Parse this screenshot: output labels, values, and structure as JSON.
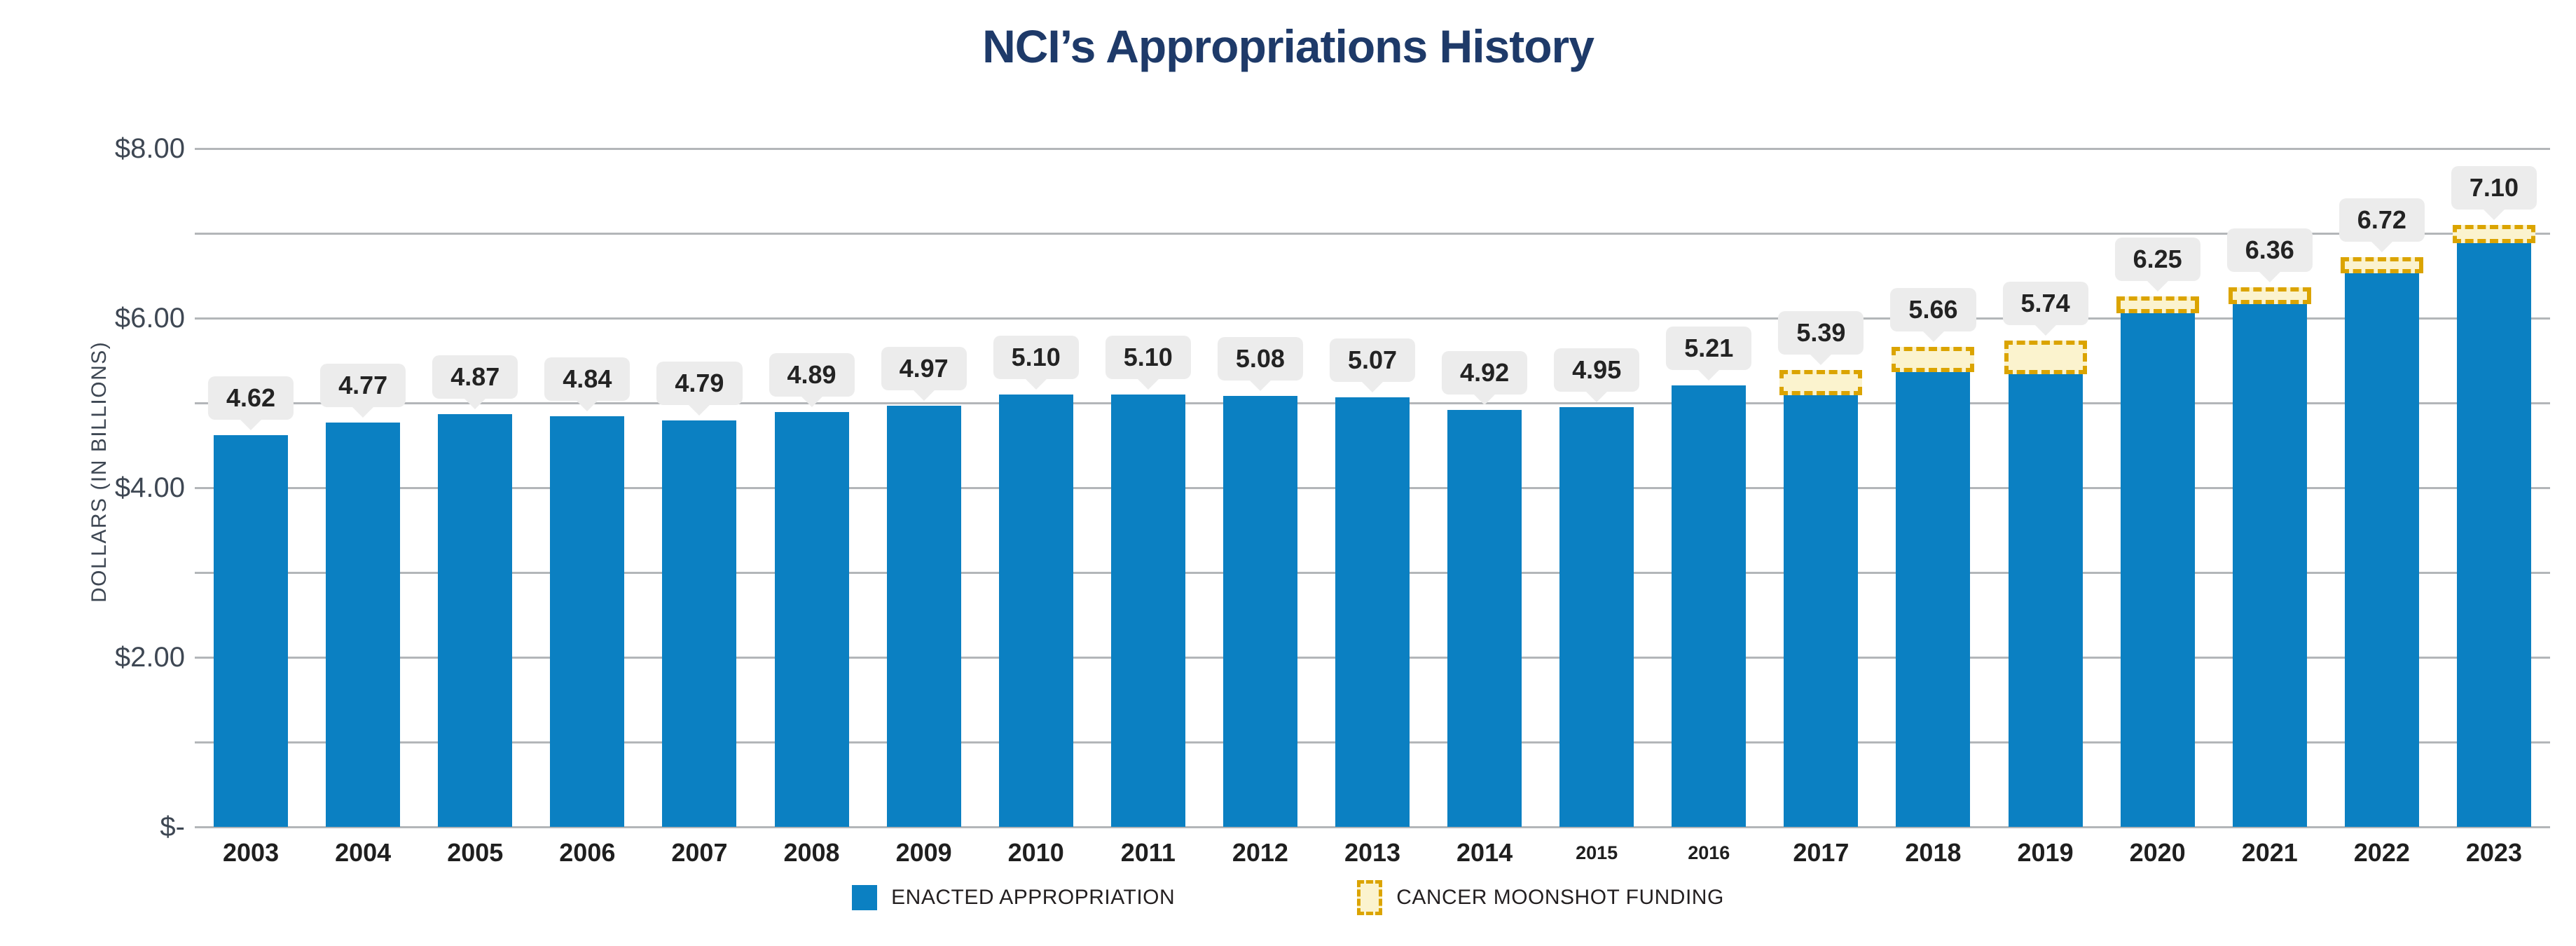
{
  "title": "NCI’s Appropriations History",
  "y_axis": {
    "title": "DOLLARS (IN BILLIONS)",
    "ticks": [
      {
        "value": 8,
        "label": "$8.00"
      },
      {
        "value": 6,
        "label": "$6.00"
      },
      {
        "value": 4,
        "label": "$4.00"
      },
      {
        "value": 2,
        "label": "$2.00"
      },
      {
        "value": 0,
        "label": "$-"
      }
    ]
  },
  "legend": {
    "enacted_label": "ENACTED APPROPRIATION",
    "moonshot_label": "CANCER MOONSHOT FUNDING"
  },
  "chart_data": {
    "type": "bar",
    "stacked": true,
    "title": "NCI’s Appropriations History",
    "ylabel": "DOLLARS (IN BILLIONS)",
    "ylim": [
      0,
      8
    ],
    "gridline_interval": 1,
    "grid": true,
    "legend_position": "bottom",
    "categories": [
      "2003",
      "2004",
      "2005",
      "2006",
      "2007",
      "2008",
      "2009",
      "2010",
      "2011",
      "2012",
      "2013",
      "2014",
      "2015",
      "2016",
      "2017",
      "2018",
      "2019",
      "2020",
      "2021",
      "2022",
      "2023"
    ],
    "small_category_labels": [
      "2015",
      "2016"
    ],
    "totals": [
      4.62,
      4.77,
      4.87,
      4.84,
      4.79,
      4.89,
      4.97,
      5.1,
      5.1,
      5.08,
      5.07,
      4.92,
      4.95,
      5.21,
      5.39,
      5.66,
      5.74,
      6.25,
      6.36,
      6.72,
      7.1
    ],
    "bar_labels": [
      "4.62",
      "4.77",
      "4.87",
      "4.84",
      "4.79",
      "4.89",
      "4.97",
      "5.10",
      "5.10",
      "5.08",
      "5.07",
      "4.92",
      "4.95",
      "5.21",
      "5.39",
      "5.66",
      "5.74",
      "6.25",
      "6.36",
      "6.72",
      "7.10"
    ],
    "series": [
      {
        "name": "ENACTED APPROPRIATION",
        "values": [
          4.62,
          4.77,
          4.87,
          4.84,
          4.79,
          4.89,
          4.97,
          5.1,
          5.1,
          5.08,
          5.07,
          4.92,
          4.95,
          5.21,
          5.09,
          5.36,
          5.34,
          6.055,
          6.165,
          6.526,
          6.884
        ]
      },
      {
        "name": "CANCER MOONSHOT FUNDING",
        "values": [
          0,
          0,
          0,
          0,
          0,
          0,
          0,
          0,
          0,
          0,
          0,
          0,
          0,
          0,
          0.3,
          0.3,
          0.4,
          0.195,
          0.195,
          0.194,
          0.216
        ]
      }
    ],
    "colors": {
      "bar_blue": "#0B80C2",
      "moonshot_fill": "#FBF3CE",
      "moonshot_border": "#DBA400",
      "gridline": "#B3B6B9",
      "callout_bg": "#ECECEC",
      "label_text": "#232323",
      "axis_text": "#3E4753",
      "title": "#1E3A69"
    }
  }
}
